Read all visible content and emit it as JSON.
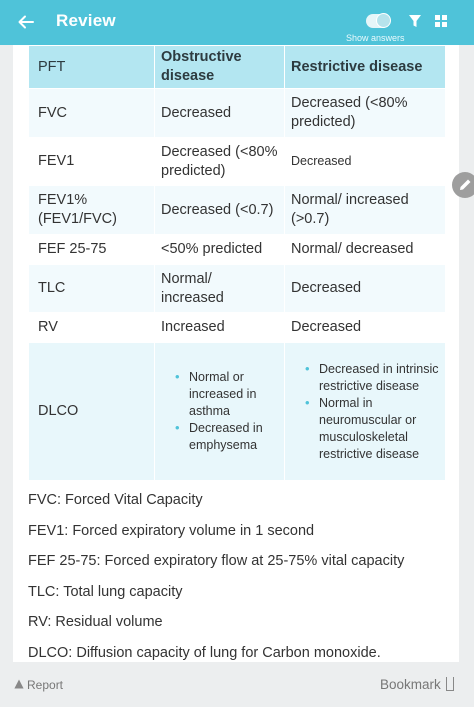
{
  "header": {
    "title": "Review",
    "show_answers": "Show answers",
    "accent": "#4fc3d9"
  },
  "table": {
    "headers": [
      "PFT",
      "Obstructive disease",
      "Restrictive disease"
    ],
    "rows": [
      {
        "pft": "FVC",
        "obstructive": "Decreased",
        "restrictive": "Decreased (<80% predicted)"
      },
      {
        "pft": "FEV1",
        "obstructive": "Decreased (<80% predicted)",
        "restrictive": "Decreased"
      },
      {
        "pft": "FEV1% (FEV1/FVC)",
        "obstructive": "Decreased (<0.7)",
        "restrictive": "Normal/ increased (>0.7)"
      },
      {
        "pft": "FEF 25-75",
        "obstructive": "<50% predicted",
        "restrictive": "Normal/ decreased"
      },
      {
        "pft": "TLC",
        "obstructive": "Normal/ increased",
        "restrictive": "Decreased"
      },
      {
        "pft": "RV",
        "obstructive": "Increased",
        "restrictive": "Decreased"
      }
    ],
    "dlco": {
      "pft": "DLCO",
      "obstructive": [
        "Normal or increased in asthma",
        "Decreased in emphysema"
      ],
      "restrictive": [
        "Decreased in intrinsic restrictive disease",
        "Normal in neuromuscular or musculoskeletal restrictive disease"
      ]
    }
  },
  "glossary": [
    "FVC: Forced Vital Capacity",
    "FEV1: Forced expiratory volume in 1 second",
    "FEF 25-75: Forced expiratory flow at 25-75% vital capacity",
    "TLC: Total lung capacity",
    "RV: Residual volume",
    "DLCO: Diffusion capacity of lung for Carbon monoxide."
  ],
  "footer": {
    "report": "Report",
    "bookmark": "Bookmark"
  }
}
